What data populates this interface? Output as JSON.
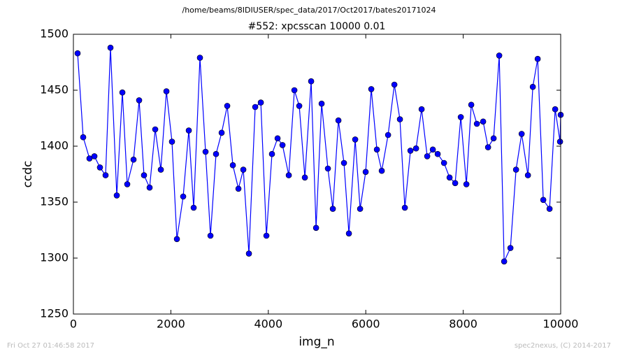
{
  "chart_data": {
    "type": "line",
    "suptitle": "/home/beams/8IDIUSER/spec_data/2017/Oct2017/bates20171024",
    "title": "#552: xpcsscan 10000 0.01",
    "xlabel": "img_n",
    "ylabel": "ccdc",
    "footer_left": "Fri Oct 27 01:46:58 2017",
    "footer_right": "spec2nexus, (C) 2014-2017",
    "xlim": [
      0,
      10000
    ],
    "xticks": [
      0,
      2000,
      4000,
      6000,
      8000,
      10000
    ],
    "ylim": [
      1250,
      1500
    ],
    "yticks": [
      1250,
      1300,
      1350,
      1400,
      1450,
      1500
    ],
    "series": [
      {
        "color": "#0000ff",
        "x": [
          86,
          201,
          330,
          431,
          545,
          660,
          761,
          890,
          1005,
          1105,
          1234,
          1349,
          1449,
          1564,
          1679,
          1794,
          1909,
          2023,
          2124,
          2253,
          2368,
          2468,
          2597,
          2712,
          2813,
          2927,
          3042,
          3157,
          3272,
          3387,
          3487,
          3602,
          3731,
          3846,
          3961,
          4075,
          4190,
          4291,
          4420,
          4535,
          4635,
          4750,
          4879,
          4980,
          5094,
          5223,
          5324,
          5439,
          5553,
          5654,
          5783,
          5884,
          5998,
          6113,
          6228,
          6328,
          6458,
          6587,
          6701,
          6802,
          6917,
          7032,
          7146,
          7261,
          7376,
          7476,
          7606,
          7720,
          7835,
          7950,
          8065,
          8165,
          8280,
          8409,
          8510,
          8624,
          8739,
          8840,
          8969,
          9084,
          9199,
          9328,
          9428,
          9528,
          9643,
          9772,
          9887,
          9987,
          10000
        ],
        "values": [
          1483,
          1408,
          1389,
          1391,
          1381,
          1374,
          1488,
          1356,
          1448,
          1366,
          1388,
          1441,
          1374,
          1363,
          1415,
          1379,
          1449,
          1404,
          1317,
          1355,
          1414,
          1345,
          1479,
          1395,
          1320,
          1393,
          1412,
          1436,
          1383,
          1362,
          1379,
          1304,
          1435,
          1439,
          1320,
          1393,
          1407,
          1401,
          1374,
          1450,
          1436,
          1372,
          1458,
          1327,
          1438,
          1380,
          1344,
          1423,
          1385,
          1322,
          1406,
          1344,
          1377,
          1451,
          1397,
          1378,
          1410,
          1455,
          1424,
          1345,
          1396,
          1398,
          1433,
          1391,
          1397,
          1393,
          1385,
          1372,
          1367,
          1426,
          1366,
          1437,
          1420,
          1422,
          1399,
          1407,
          1481,
          1297,
          1309,
          1379,
          1411,
          1374,
          1453,
          1478,
          1352,
          1344,
          1433,
          1404,
          1428
        ]
      }
    ]
  }
}
